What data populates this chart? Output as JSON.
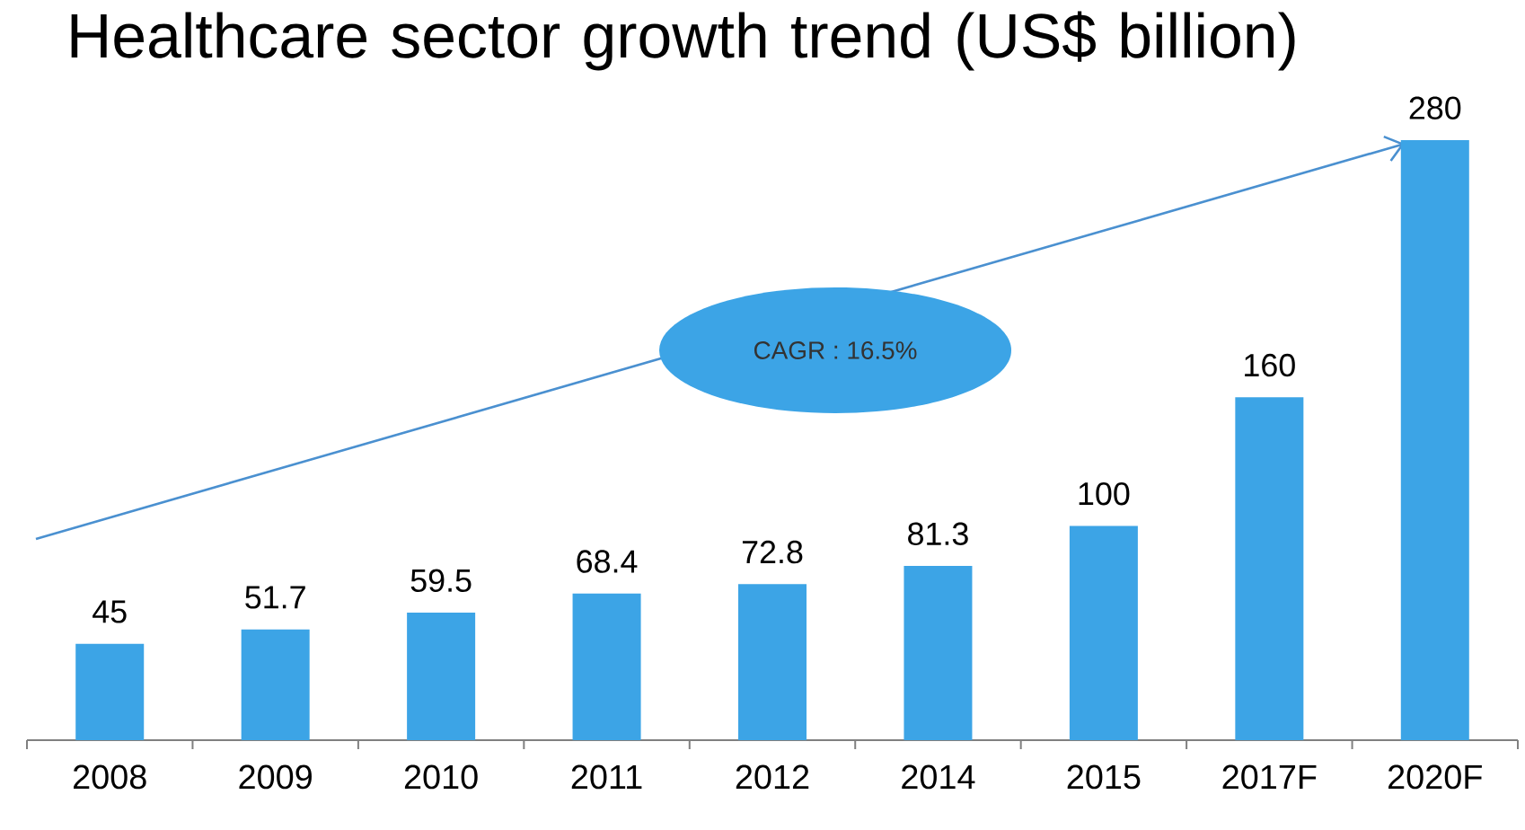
{
  "chart_data": {
    "type": "bar",
    "title": "Healthcare sector growth trend (US$ billion)",
    "categories": [
      "2008",
      "2009",
      "2010",
      "2011",
      "2012",
      "2014",
      "2015",
      "2017F",
      "2020F"
    ],
    "values": [
      45,
      51.7,
      59.5,
      68.4,
      72.8,
      81.3,
      100,
      160,
      280
    ],
    "color": "#3ca4e6",
    "data_labels": true,
    "annotations": [
      "CAGR : 16.5%"
    ]
  }
}
